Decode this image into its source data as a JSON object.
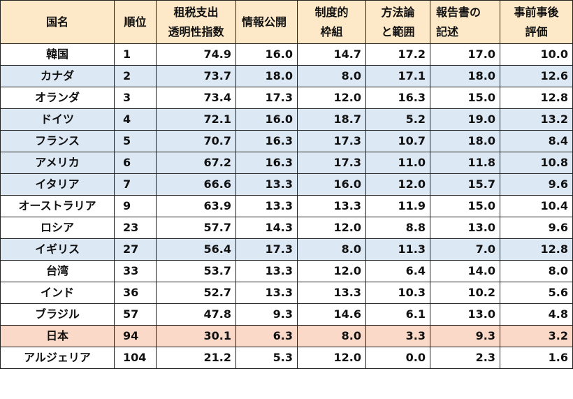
{
  "colors": {
    "header_bg": "#fde8c8",
    "row_white": "#ffffff",
    "row_blue": "#dde8f5",
    "row_highlight": "#fbd9c8",
    "border": "#222222"
  },
  "headers": [
    {
      "lines": [
        "国名"
      ],
      "align": "center"
    },
    {
      "lines": [
        "順位"
      ],
      "align": "center"
    },
    {
      "lines": [
        "租税支出",
        "透明性指数"
      ],
      "align": "center"
    },
    {
      "lines": [
        "情報公開"
      ],
      "align": "left"
    },
    {
      "lines": [
        "制度的",
        "枠組"
      ],
      "align": "center"
    },
    {
      "lines": [
        "方法論",
        "と範囲"
      ],
      "align": "center"
    },
    {
      "lines": [
        "報告書の",
        "記述"
      ],
      "align": "left"
    },
    {
      "lines": [
        "事前事後",
        "評価"
      ],
      "align": "center"
    }
  ],
  "rows": [
    {
      "style": "white",
      "cells": [
        "韓国",
        "1",
        "74.9",
        "16.0",
        "14.7",
        "17.2",
        "17.0",
        "10.0"
      ]
    },
    {
      "style": "blue",
      "cells": [
        "カナダ",
        "2",
        "73.7",
        "18.0",
        "8.0",
        "17.1",
        "18.0",
        "12.6"
      ]
    },
    {
      "style": "white",
      "cells": [
        "オランダ",
        "3",
        "73.4",
        "17.3",
        "12.0",
        "16.3",
        "15.0",
        "12.8"
      ]
    },
    {
      "style": "blue",
      "cells": [
        "ドイツ",
        "4",
        "72.1",
        "16.0",
        "18.7",
        "5.2",
        "19.0",
        "13.2"
      ]
    },
    {
      "style": "blue",
      "cells": [
        "フランス",
        "5",
        "70.7",
        "16.3",
        "17.3",
        "10.7",
        "18.0",
        "8.4"
      ]
    },
    {
      "style": "blue",
      "cells": [
        "アメリカ",
        "6",
        "67.2",
        "16.3",
        "17.3",
        "11.0",
        "11.8",
        "10.8"
      ]
    },
    {
      "style": "blue",
      "cells": [
        "イタリア",
        "7",
        "66.6",
        "13.3",
        "16.0",
        "12.0",
        "15.7",
        "9.6"
      ]
    },
    {
      "style": "white",
      "cells": [
        "オーストラリア",
        "9",
        "63.9",
        "13.3",
        "13.3",
        "11.9",
        "15.0",
        "10.4"
      ]
    },
    {
      "style": "white",
      "cells": [
        "ロシア",
        "23",
        "57.7",
        "14.3",
        "12.0",
        "8.8",
        "13.0",
        "9.6"
      ]
    },
    {
      "style": "blue",
      "cells": [
        "イギリス",
        "27",
        "56.4",
        "17.3",
        "8.0",
        "11.3",
        "7.0",
        "12.8"
      ]
    },
    {
      "style": "white",
      "cells": [
        "台湾",
        "33",
        "53.7",
        "13.3",
        "12.0",
        "6.4",
        "14.0",
        "8.0"
      ]
    },
    {
      "style": "white",
      "cells": [
        "インド",
        "36",
        "52.7",
        "13.3",
        "13.3",
        "10.3",
        "10.2",
        "5.6"
      ]
    },
    {
      "style": "white",
      "cells": [
        "ブラジル",
        "57",
        "47.8",
        "9.3",
        "14.6",
        "6.1",
        "13.0",
        "4.8"
      ]
    },
    {
      "style": "highlight",
      "cells": [
        "日本",
        "94",
        "30.1",
        "6.3",
        "8.0",
        "3.3",
        "9.3",
        "3.2"
      ]
    },
    {
      "style": "white",
      "cells": [
        "アルジェリア",
        "104",
        "21.2",
        "5.3",
        "12.0",
        "0.0",
        "2.3",
        "1.6"
      ]
    }
  ]
}
